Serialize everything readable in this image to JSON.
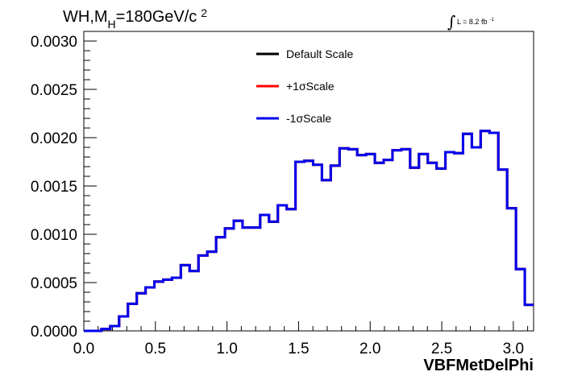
{
  "chart_data": {
    "type": "line",
    "title": "WH,M_H=180GeV/c^2",
    "title_parts": {
      "main": "WH,M",
      "sub": "H",
      "rest": "=180GeV/c",
      "sup": "2"
    },
    "luminosity": {
      "text": "L = 8.2 fb",
      "sup": "-1"
    },
    "xlabel": "VBFMetDelPhi",
    "ylabel": "",
    "xlim": [
      0.0,
      3.1416
    ],
    "ylim": [
      0.0,
      0.0031
    ],
    "x_ticks": [
      "0.0",
      "0.5",
      "1.0",
      "1.5",
      "2.0",
      "2.5",
      "3.0"
    ],
    "x_tick_values": [
      0.0,
      0.5,
      1.0,
      1.5,
      2.0,
      2.5,
      3.0
    ],
    "y_ticks": [
      "0.0000",
      "0.0005",
      "0.0010",
      "0.0015",
      "0.0020",
      "0.0025",
      "0.0030"
    ],
    "y_tick_values": [
      0.0,
      0.0005,
      0.001,
      0.0015,
      0.002,
      0.0025,
      0.003
    ],
    "grid": false,
    "legend_position": "top-center",
    "bin_edges_range": [
      0.0,
      3.1416
    ],
    "n_bins": 50,
    "series": [
      {
        "name": "Default Scale",
        "color": "#000000",
        "values": [
          0.0,
          0.0,
          2e-05,
          5e-05,
          0.00015,
          0.00028,
          0.00039,
          0.00045,
          0.00051,
          0.00053,
          0.00055,
          0.00068,
          0.00062,
          0.00078,
          0.00082,
          0.00097,
          0.00106,
          0.00114,
          0.00107,
          0.00107,
          0.0012,
          0.00113,
          0.0013,
          0.00126,
          0.00175,
          0.00176,
          0.00172,
          0.00156,
          0.00171,
          0.00189,
          0.00188,
          0.00182,
          0.00183,
          0.00174,
          0.00177,
          0.00187,
          0.00188,
          0.00169,
          0.00183,
          0.00174,
          0.00168,
          0.00185,
          0.00184,
          0.00204,
          0.0019,
          0.00207,
          0.00205,
          0.00167,
          0.00127,
          0.00064,
          0.00027
        ]
      },
      {
        "name": "+1σScale",
        "color": "#ff0000",
        "values": [
          0.0,
          0.0,
          2e-05,
          5e-05,
          0.00015,
          0.00028,
          0.00039,
          0.00045,
          0.00051,
          0.00053,
          0.00055,
          0.00068,
          0.00062,
          0.00078,
          0.00082,
          0.00097,
          0.00106,
          0.00114,
          0.00107,
          0.00107,
          0.0012,
          0.00113,
          0.0013,
          0.00126,
          0.00175,
          0.00176,
          0.00172,
          0.00156,
          0.00171,
          0.00189,
          0.00188,
          0.00182,
          0.00183,
          0.00174,
          0.00177,
          0.00187,
          0.00188,
          0.00169,
          0.00183,
          0.00174,
          0.00168,
          0.00185,
          0.00184,
          0.00204,
          0.0019,
          0.00207,
          0.00205,
          0.00167,
          0.00127,
          0.00064,
          0.00027
        ]
      },
      {
        "name": "-1σScale",
        "color": "#0000ee",
        "values": [
          0.0,
          0.0,
          2e-05,
          5e-05,
          0.00015,
          0.00028,
          0.00039,
          0.00045,
          0.00051,
          0.00053,
          0.00055,
          0.00068,
          0.00062,
          0.00078,
          0.00082,
          0.00097,
          0.00106,
          0.00114,
          0.00107,
          0.00107,
          0.0012,
          0.00113,
          0.0013,
          0.00126,
          0.00175,
          0.00176,
          0.00172,
          0.00156,
          0.00171,
          0.00189,
          0.00188,
          0.00182,
          0.00183,
          0.00174,
          0.00177,
          0.00187,
          0.00188,
          0.00169,
          0.00183,
          0.00174,
          0.00168,
          0.00185,
          0.00184,
          0.00204,
          0.0019,
          0.00207,
          0.00205,
          0.00167,
          0.00127,
          0.00064,
          0.00027
        ]
      }
    ]
  }
}
